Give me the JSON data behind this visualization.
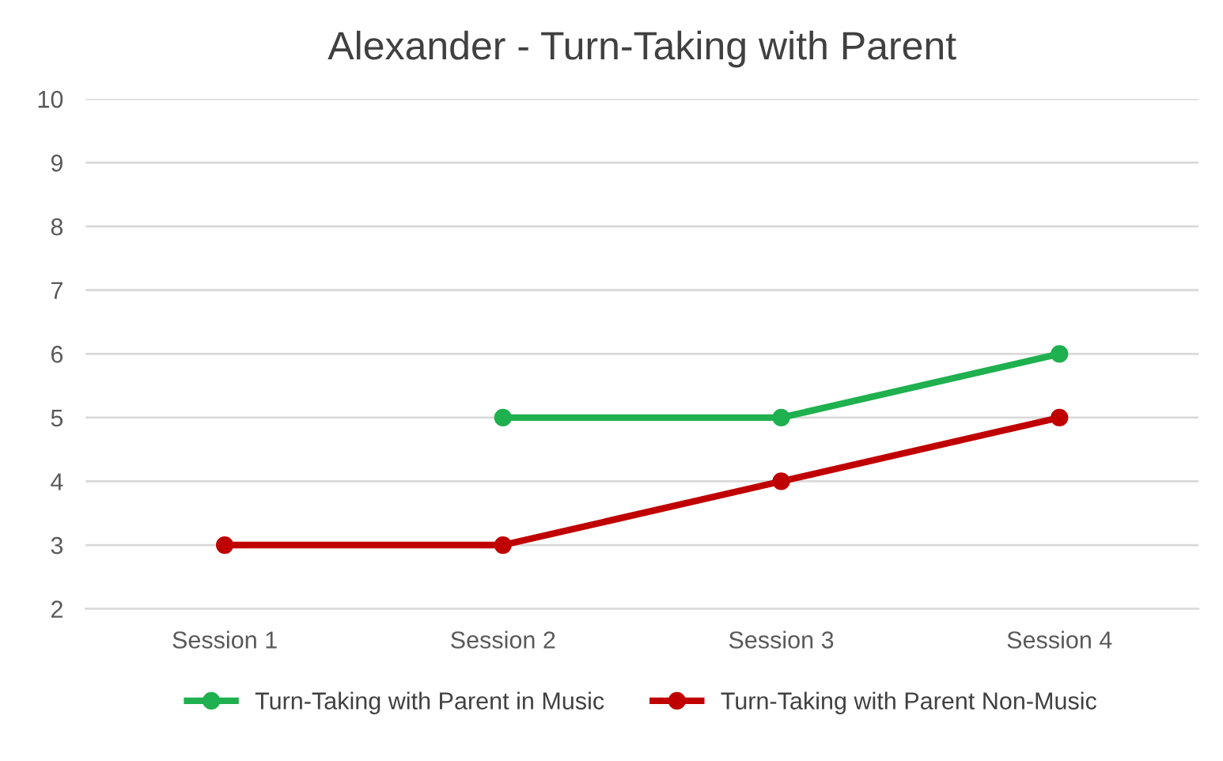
{
  "chart_data": {
    "type": "line",
    "title": "Alexander - Turn-Taking with Parent",
    "categories": [
      "Session 1",
      "Session 2",
      "Session 3",
      "Session 4"
    ],
    "series": [
      {
        "name": "Turn-Taking with Parent in Music",
        "color": "#1fb04f",
        "values": [
          null,
          5,
          5,
          6
        ]
      },
      {
        "name": "Turn-Taking with Parent Non-Music",
        "color": "#c00000",
        "values": [
          3,
          3,
          4,
          5
        ]
      }
    ],
    "ylim": [
      2,
      10
    ],
    "yticks": [
      2,
      3,
      4,
      5,
      6,
      7,
      8,
      9,
      10
    ],
    "grid": "y",
    "legend": "bottom",
    "marker": "circle",
    "line_style": "solid"
  }
}
